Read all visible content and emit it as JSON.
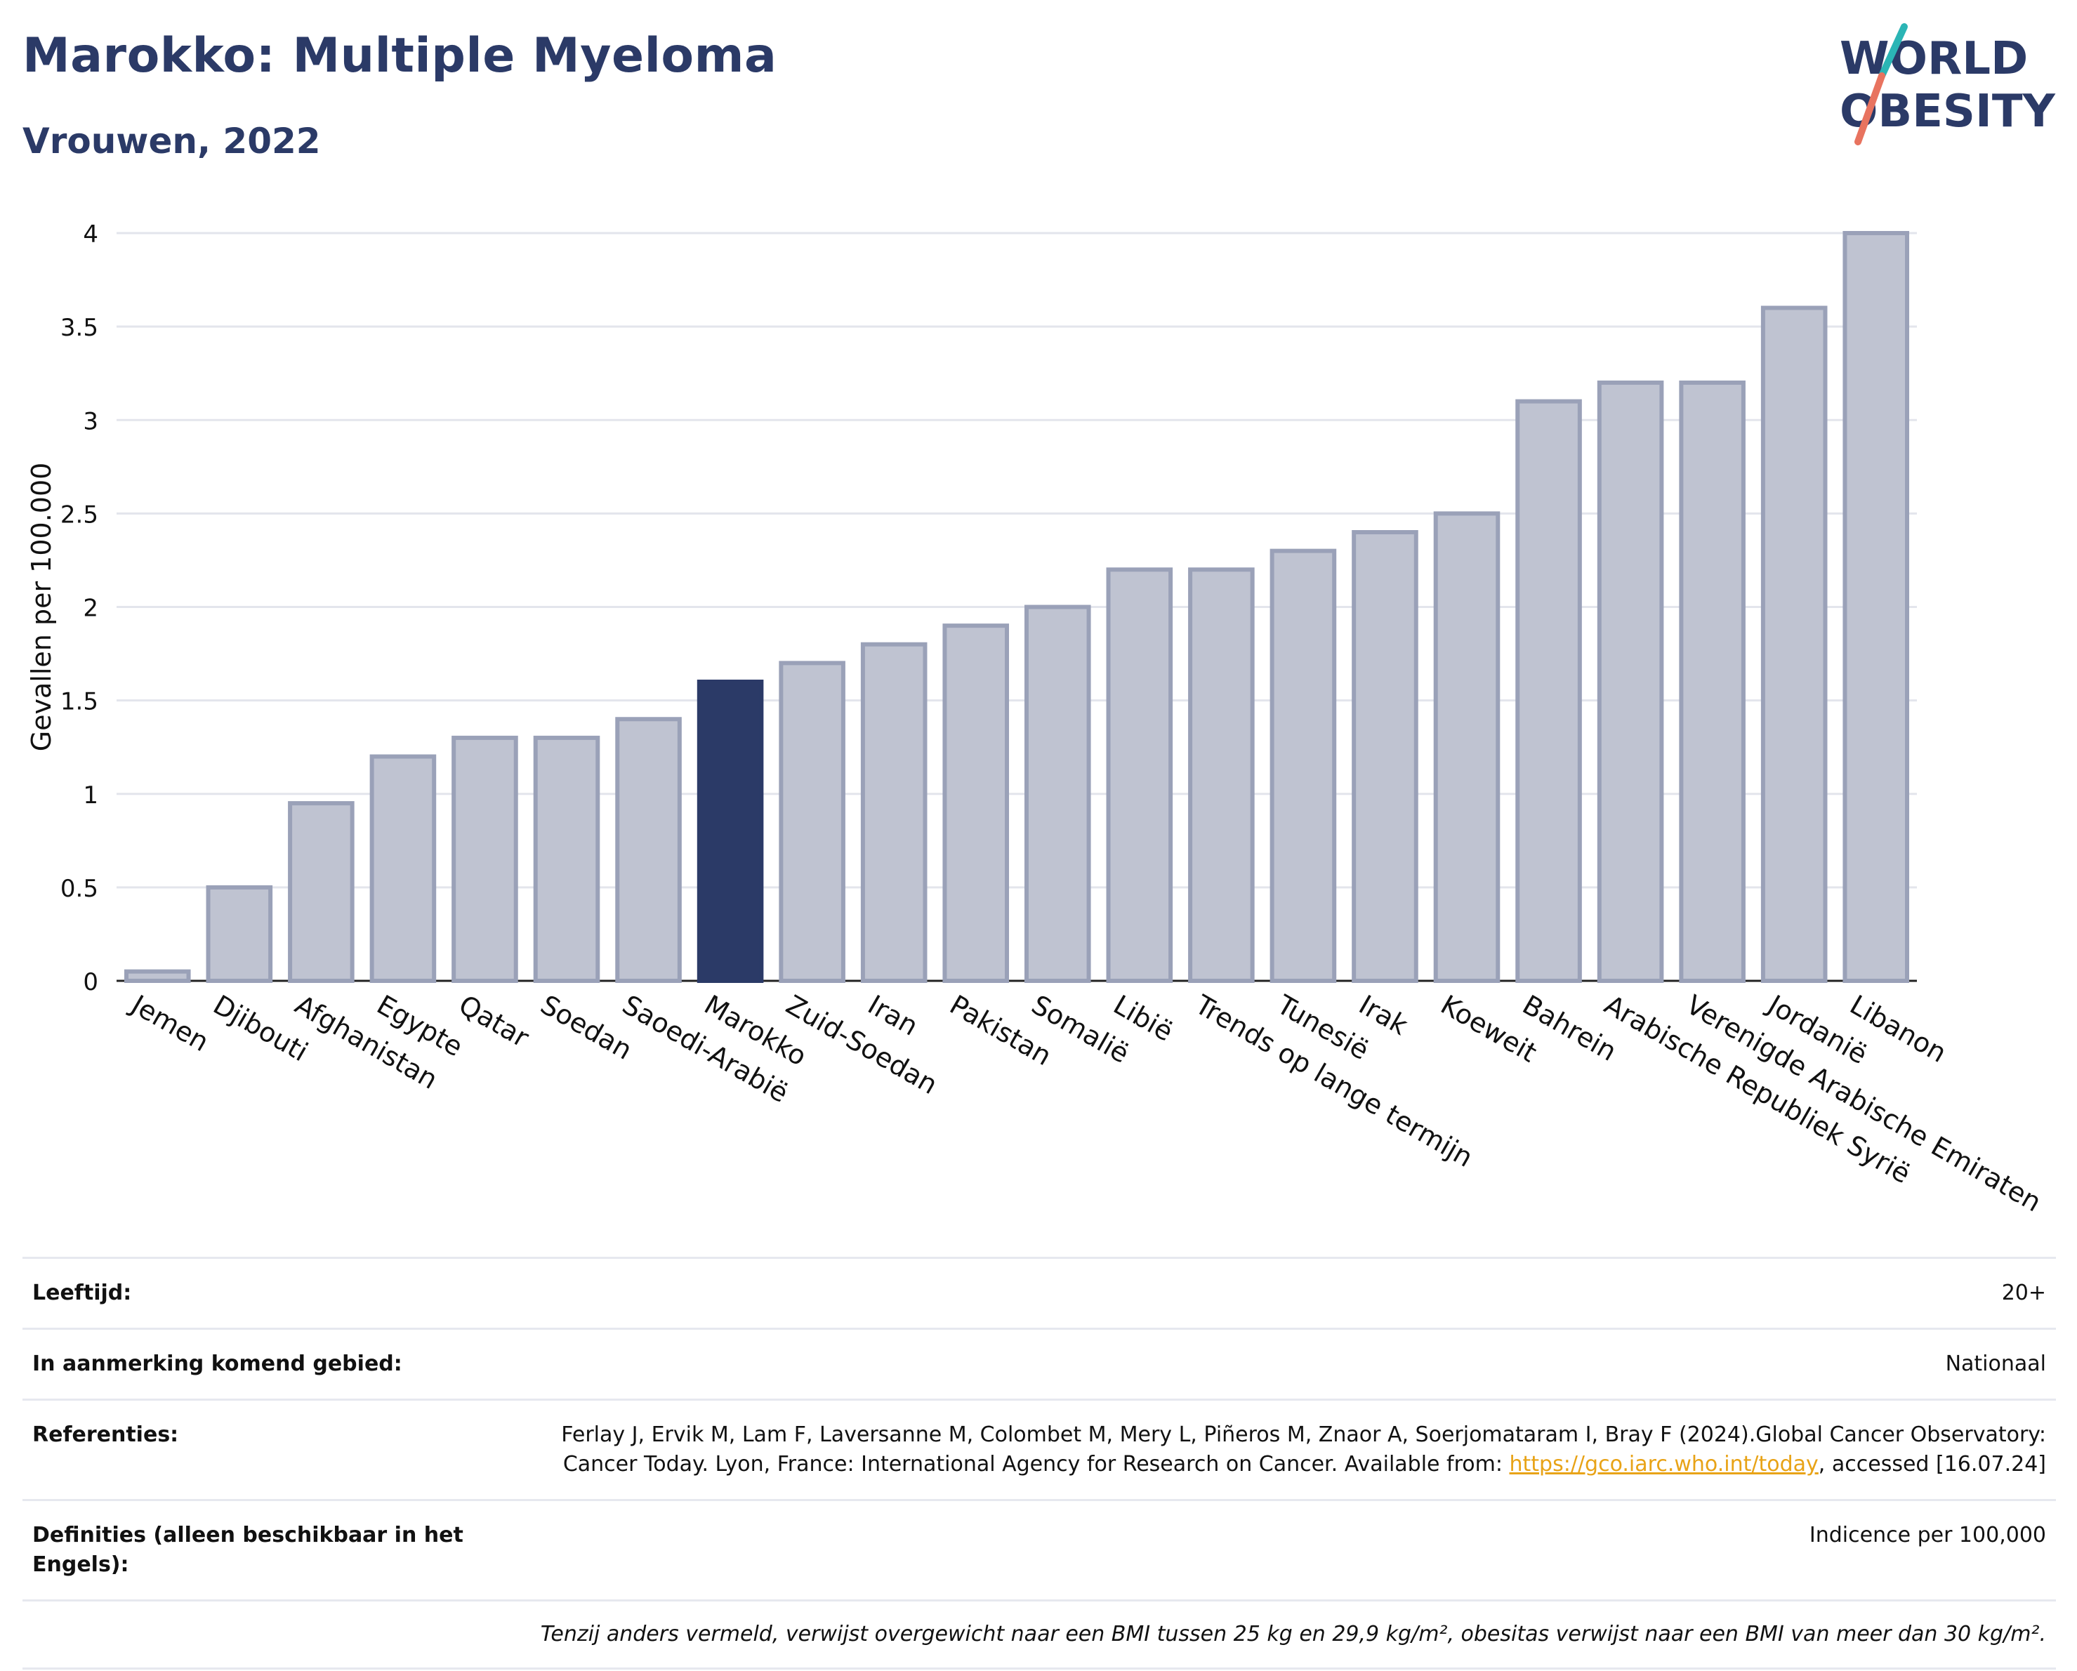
{
  "header": {
    "title": "Marokko: Multiple Myeloma",
    "subtitle": "Vrouwen, 2022",
    "logo_line1": "WORLD",
    "logo_line2": "OBESITY"
  },
  "colors": {
    "accent": "#2b3a67",
    "bar_default": "#bfc3d1",
    "bar_outline": "#9aa1b8",
    "logo_teal": "#2bb5b5",
    "logo_coral": "#e8735f",
    "link": "#e8a317"
  },
  "chart_data": {
    "type": "bar",
    "title": "",
    "xlabel": "",
    "ylabel": "Gevallen per 100.000",
    "ylim": [
      0,
      4
    ],
    "yticks": [
      "0",
      "0.5",
      "1",
      "1.5",
      "2",
      "2.5",
      "3",
      "3.5",
      "4"
    ],
    "grid": true,
    "highlight": "Marokko",
    "categories": [
      "Jemen",
      "Djibouti",
      "Afghanistan",
      "Egypte",
      "Qatar",
      "Soedan",
      "Saoedi-Arabië",
      "Marokko",
      "Zuid-Soedan",
      "Iran",
      "Pakistan",
      "Somalië",
      "Libië",
      "Trends op lange termijn",
      "Tunesië",
      "Irak",
      "Koeweit",
      "Bahrein",
      "Arabische Republiek Syrië",
      "Verenigde Arabische Emiraten",
      "Jordanië",
      "Libanon"
    ],
    "values": [
      0.05,
      0.5,
      0.95,
      1.2,
      1.3,
      1.3,
      1.4,
      1.6,
      1.7,
      1.8,
      1.9,
      2.0,
      2.2,
      2.2,
      2.3,
      2.4,
      2.5,
      3.1,
      3.2,
      3.2,
      3.6,
      4.0
    ]
  },
  "meta": {
    "age_label": "Leeftijd:",
    "age_value": "20+",
    "area_label": "In aanmerking komend gebied:",
    "area_value": "Nationaal",
    "ref_label": "Referenties:",
    "ref_text": "Ferlay J, Ervik M, Lam F, Laversanne M, Colombet M, Mery L, Piñeros M, Znaor A, Soerjomataram I, Bray F (2024).Global Cancer Observatory: Cancer Today. Lyon, France: International Agency for Research on Cancer. Available from: ",
    "ref_link": "https://gco.iarc.who.int/today",
    "ref_tail": ", accessed [16.07.24]",
    "def_label": "Definities (alleen beschikbaar in het Engels):",
    "def_value": "Indicence per 100,000",
    "note": "Tenzij anders vermeld, verwijst overgewicht naar een BMI tussen 25 kg en 29,9 kg/m², obesitas verwijst naar een BMI van meer dan 30 kg/m²."
  }
}
